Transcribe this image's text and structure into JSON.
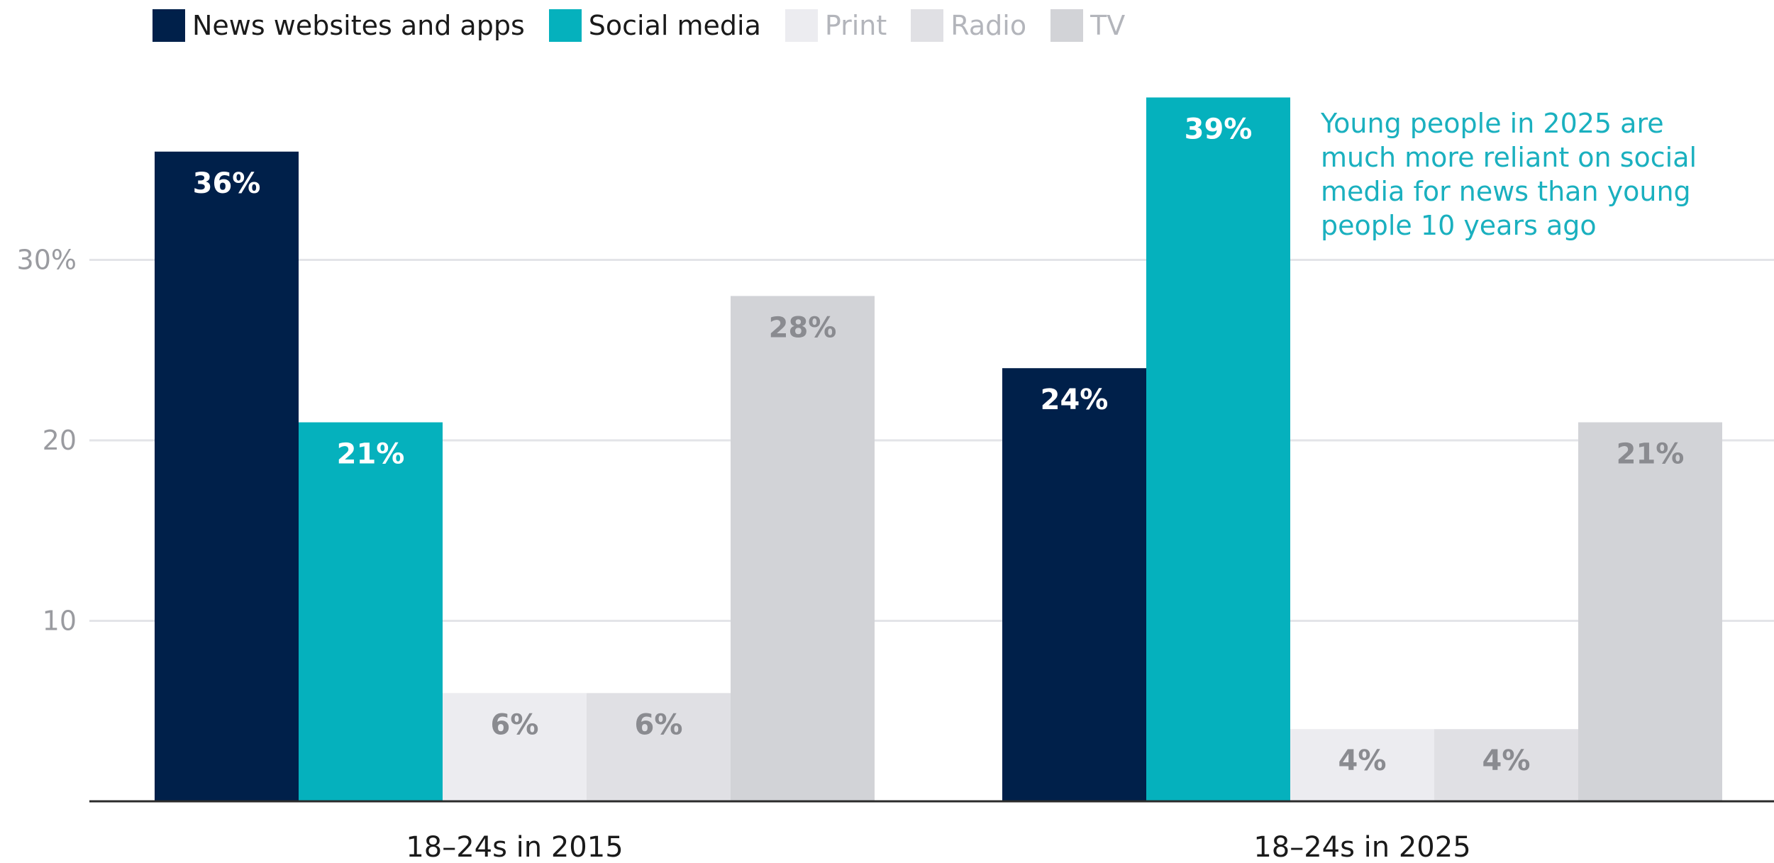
{
  "chart_data": {
    "type": "bar",
    "categories": [
      "18–24s in 2015",
      "18–24s in 2025"
    ],
    "series": [
      {
        "name": "News websites and apps",
        "values": [
          36,
          24
        ],
        "labels": [
          "36%",
          "24%"
        ],
        "color": "#00204a",
        "label_color": "#ffffff"
      },
      {
        "name": "Social media",
        "values": [
          21,
          39
        ],
        "labels": [
          "21%",
          "39%"
        ],
        "color": "#05b1bd",
        "label_color": "#ffffff"
      },
      {
        "name": "Print",
        "values": [
          6,
          4
        ],
        "labels": [
          "6%",
          "4%"
        ],
        "color": "#ececf0",
        "label_color": "#8a8b90"
      },
      {
        "name": "Radio",
        "values": [
          6,
          4
        ],
        "labels": [
          "6%",
          "4%"
        ],
        "color": "#e0e0e4",
        "label_color": "#8a8b90"
      },
      {
        "name": "TV",
        "values": [
          28,
          21
        ],
        "labels": [
          "28%",
          "21%"
        ],
        "color": "#d2d3d7",
        "label_color": "#8a8b90"
      }
    ],
    "yticks": [
      {
        "value": 10,
        "label": "10"
      },
      {
        "value": 20,
        "label": "20"
      },
      {
        "value": 30,
        "label": "30%"
      }
    ],
    "ylim": [
      0,
      40
    ],
    "grid": true,
    "legend_position": "top-left",
    "annotation": "Young people in 2025 are much more reliant on social media for news than young people 10 years ago",
    "annotation_color": "#1ab0bf"
  }
}
